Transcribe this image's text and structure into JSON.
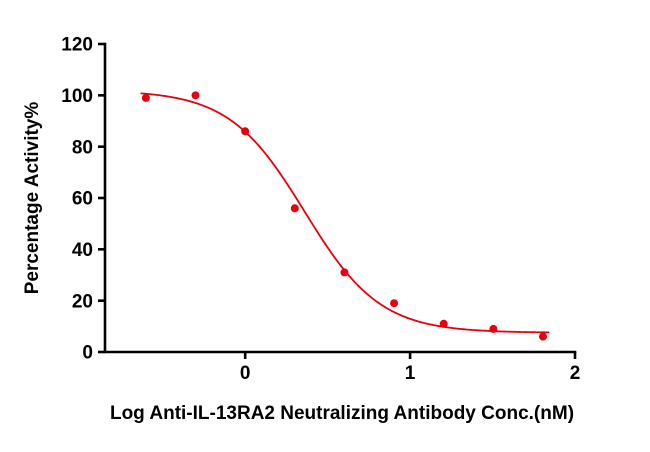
{
  "chart_data": {
    "type": "scatter",
    "title": "",
    "xlabel": "Log Anti-IL-13RA2 Neutralizing Antibody Conc.(nM)",
    "ylabel": "Percentage Activity%",
    "xlim": [
      -0.85,
      2
    ],
    "ylim": [
      0,
      120
    ],
    "x_ticks": [
      0,
      1,
      2
    ],
    "y_ticks": [
      0,
      20,
      40,
      60,
      80,
      100,
      120
    ],
    "grid": false,
    "legend": "none",
    "points": [
      {
        "x": -0.602,
        "y": 99
      },
      {
        "x": -0.301,
        "y": 100
      },
      {
        "x": 0.0,
        "y": 86
      },
      {
        "x": 0.301,
        "y": 56
      },
      {
        "x": 0.602,
        "y": 31
      },
      {
        "x": 0.903,
        "y": 19
      },
      {
        "x": 1.204,
        "y": 11
      },
      {
        "x": 1.505,
        "y": 9
      },
      {
        "x": 1.806,
        "y": 6
      }
    ],
    "fit_curve": {
      "model": "4PL",
      "top": 102,
      "bottom": 7.5,
      "log_ic50": 0.36,
      "hill_slope": 1.9,
      "x_start": -0.63,
      "x_end": 1.84
    },
    "marker_color": "#e8000d",
    "line_color": "#e8000d",
    "axis_color": "#000000"
  }
}
